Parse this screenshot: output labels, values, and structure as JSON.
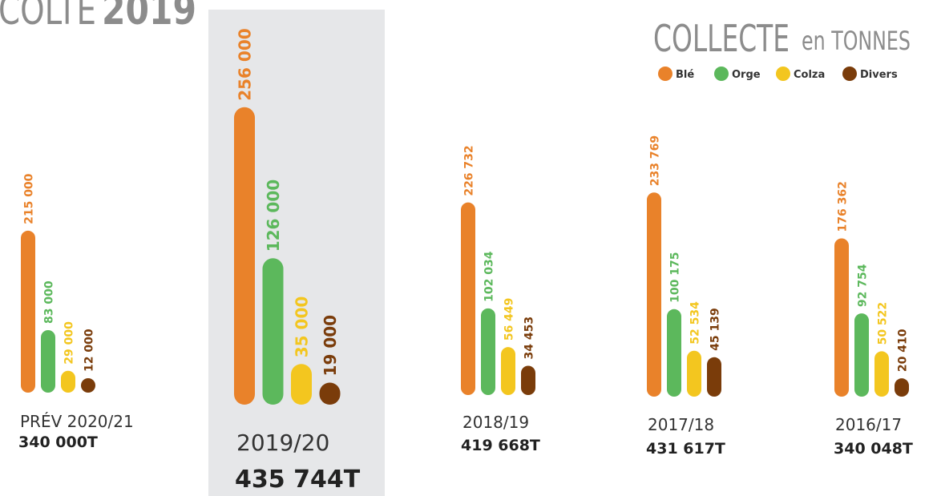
{
  "chart_data": {
    "type": "bar",
    "header_fragment": [
      "COLTE",
      "2019"
    ],
    "title": "COLLECTE",
    "subtitle": "en TONNES",
    "categories": [
      "PRÉV 2020/21",
      "2019/20",
      "2018/19",
      "2017/18",
      "2016/17"
    ],
    "total_labels": [
      "340 000T",
      "435 744T",
      "419 668T",
      "431 617T",
      "340 048T"
    ],
    "highlight": 1,
    "series": [
      {
        "name": "Blé",
        "color": "#e9822a",
        "values": [
          215000,
          256000,
          226732,
          233769,
          176362
        ],
        "value_labels": [
          "215 000",
          "256 000",
          "226 732",
          "233 769",
          "176 362"
        ]
      },
      {
        "name": "Orge",
        "color": "#5cb85c",
        "values": [
          83000,
          126000,
          102034,
          100175,
          92754
        ],
        "value_labels": [
          "83 000",
          "126 000",
          "102 034",
          "100 175",
          "92 754"
        ]
      },
      {
        "name": "Colza",
        "color": "#f3c61f",
        "values": [
          29000,
          35000,
          56449,
          52534,
          50522
        ],
        "value_labels": [
          "29 000",
          "35 000",
          "56 449",
          "52 534",
          "50 522"
        ]
      },
      {
        "name": "Divers",
        "color": "#7a3c0a",
        "values": [
          12000,
          19000,
          34453,
          45139,
          20410
        ],
        "value_labels": [
          "12 000",
          "19 000",
          "34 453",
          "45 139",
          "20 410"
        ]
      }
    ]
  }
}
